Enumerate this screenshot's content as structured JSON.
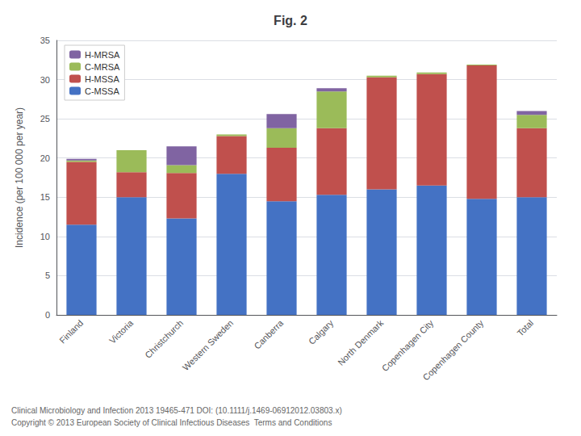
{
  "chart_data": {
    "type": "bar",
    "stacked": true,
    "title": "Fig. 2",
    "ylabel": "Incidence (per 100 000 per year)",
    "categories": [
      "Finland",
      "Victoria",
      "Christchurch",
      "Western Sweden",
      "Canberra",
      "Calgary",
      "North Denmark",
      "Copenhagen City",
      "Copenhagen County",
      "Total"
    ],
    "series": [
      {
        "name": "C-MSSA",
        "color": "#4472C4",
        "values": [
          11.5,
          15.0,
          12.3,
          18.0,
          14.5,
          15.3,
          16.0,
          16.5,
          14.8,
          15.0
        ]
      },
      {
        "name": "H-MSSA",
        "color": "#C0504D",
        "values": [
          8.0,
          3.2,
          5.8,
          4.8,
          6.8,
          8.5,
          14.3,
          14.2,
          17.0,
          8.8
        ]
      },
      {
        "name": "C-MRSA",
        "color": "#9BBB59",
        "values": [
          0.2,
          2.8,
          1.0,
          0.2,
          2.5,
          4.7,
          0.2,
          0.2,
          0.1,
          1.7
        ]
      },
      {
        "name": "H-MRSA",
        "color": "#8064A2",
        "values": [
          0.2,
          0.0,
          2.4,
          0.0,
          1.8,
          0.4,
          0.0,
          0.0,
          0.0,
          0.5
        ]
      }
    ],
    "ylim": [
      0,
      35
    ],
    "yticks": [
      0,
      5,
      10,
      15,
      20,
      25,
      30,
      35
    ],
    "grid": true,
    "legend": "upper left",
    "annotations": [
      "Clinical Microbiology and Infection 2013 19465-471 DOI: (10.1111/j.1469-06912012.03803.x)",
      "Copyright © 2013 European Society of Clinical Infectious Diseases  Terms and Conditions"
    ]
  }
}
